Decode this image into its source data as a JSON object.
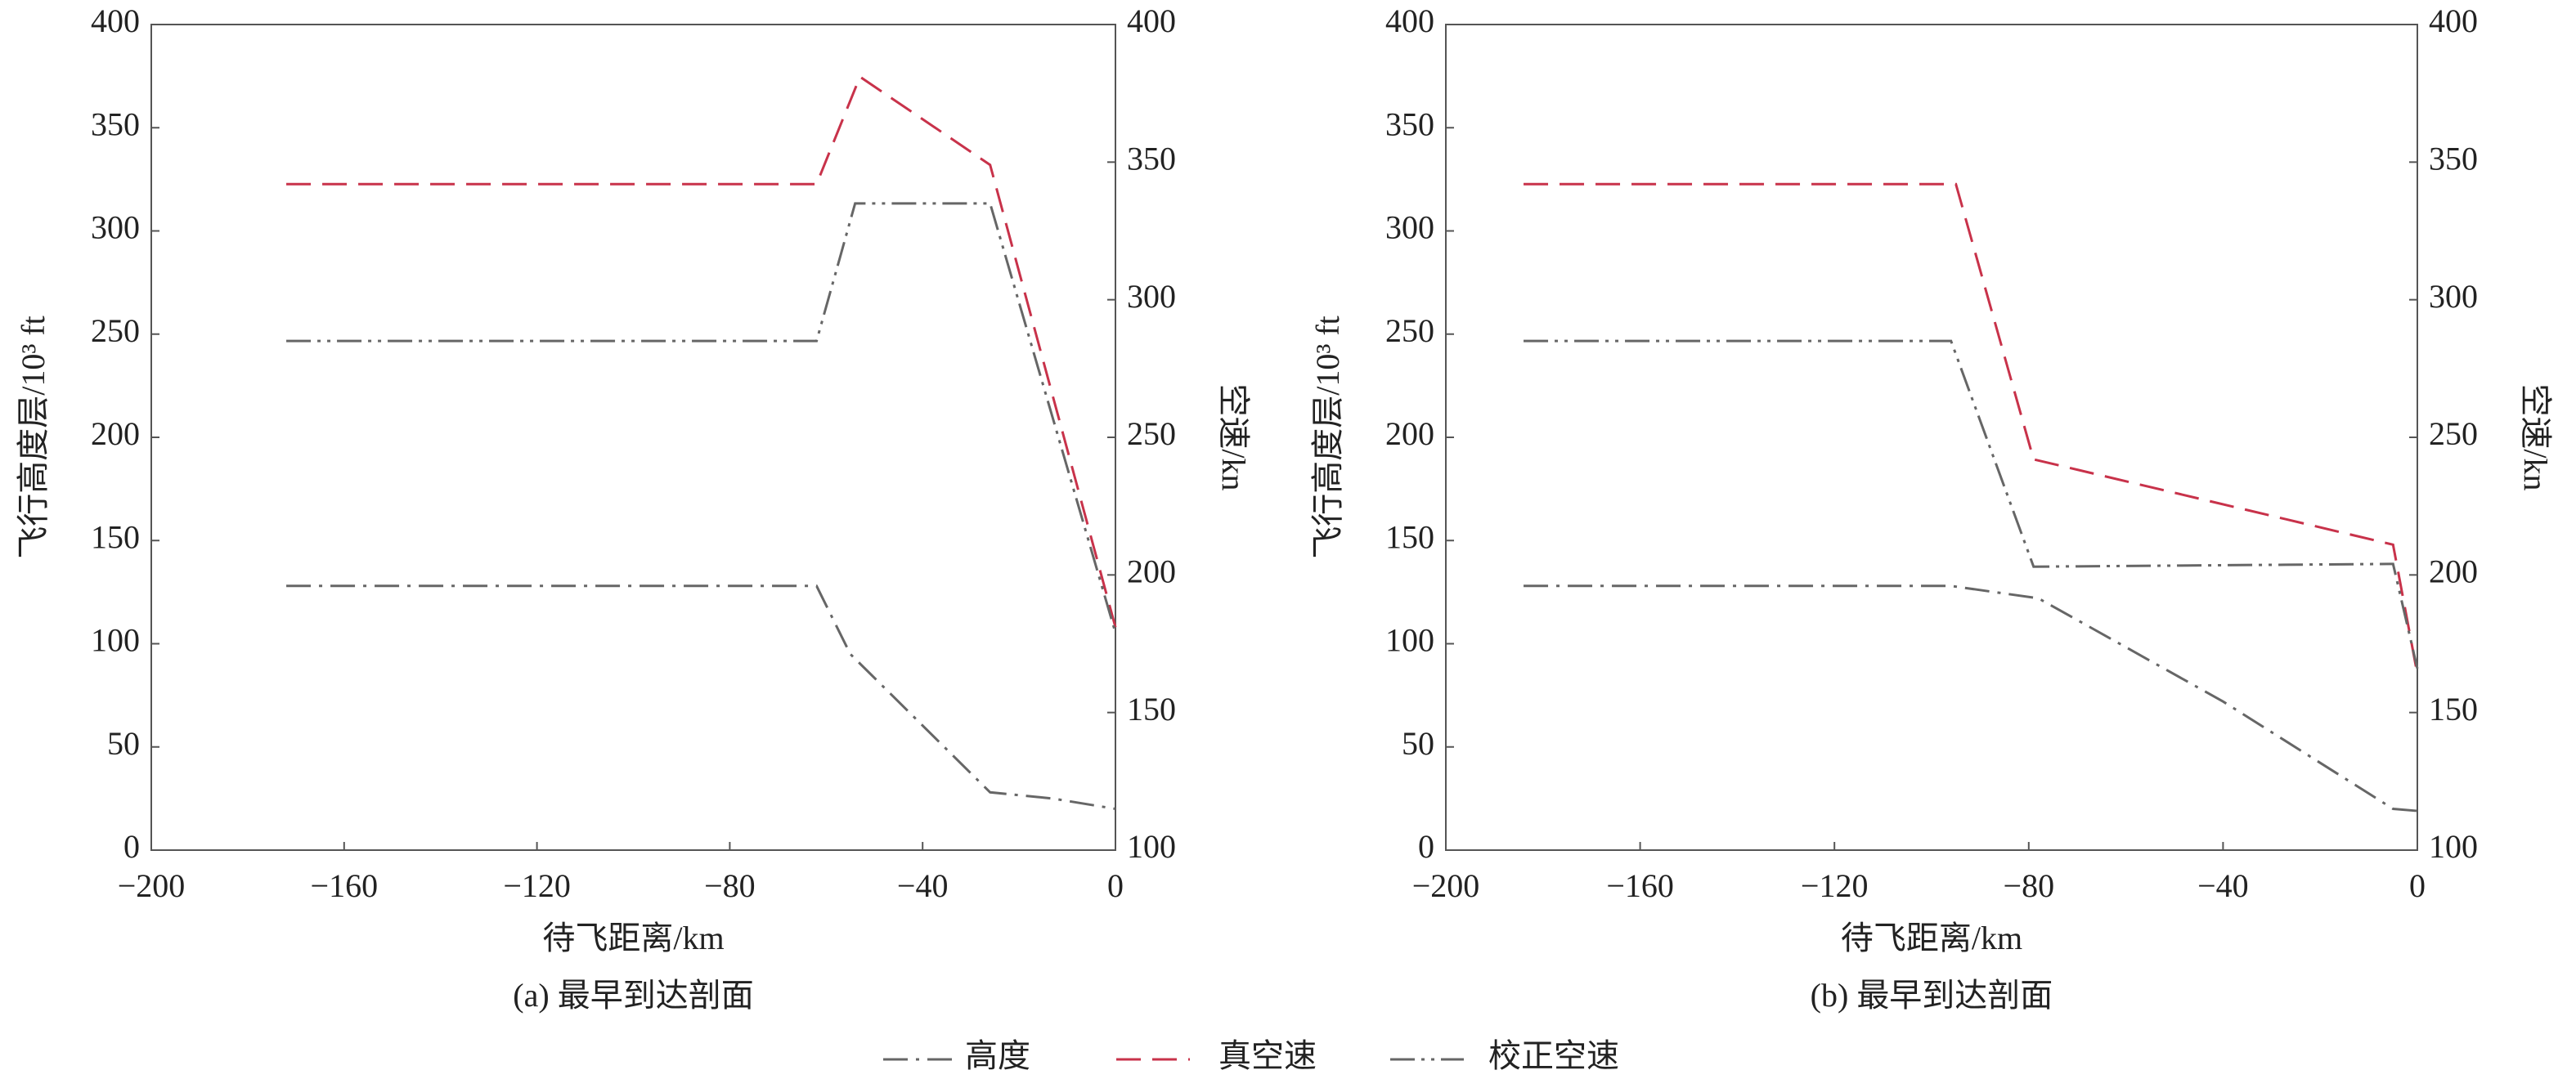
{
  "chart_data": [
    {
      "type": "line",
      "title": "(a) 最早到达剖面",
      "x_label": "待飞距离/km",
      "y_label": "飞行高度层/10³ ft",
      "y2_label": "空速/kn",
      "xlim": [
        -200,
        0
      ],
      "xticks": [
        {
          "value": -200,
          "label": "−200"
        },
        {
          "value": -160,
          "label": "−160"
        },
        {
          "value": -120,
          "label": "−120"
        },
        {
          "value": -80,
          "label": "−80"
        },
        {
          "value": -40,
          "label": "−40"
        },
        0
      ],
      "ylim": [
        0,
        400
      ],
      "yticks": [
        0,
        50,
        100,
        150,
        200,
        250,
        300,
        350,
        400
      ],
      "y2lim": [
        100,
        400
      ],
      "y2ticks": [
        100,
        150,
        200,
        250,
        300,
        350,
        400
      ],
      "series": [
        {
          "name": "高度",
          "color": "#666666",
          "dash": "30 10 4 10",
          "x": [
            -172,
            -62,
            -55,
            -26,
            -13,
            0
          ],
          "values": [
            128,
            128,
            95,
            28,
            25,
            20
          ]
        },
        {
          "name": "真空速",
          "color": "#c8324a",
          "dash": "30 14",
          "axis": "y2",
          "x": [
            -172,
            -62,
            -53,
            -26,
            0
          ],
          "values": [
            342,
            342,
            381,
            349,
            181
          ]
        },
        {
          "name": "校正空速",
          "color": "#666666",
          "dash": "30 8 4 8 4 8",
          "axis": "y2",
          "x": [
            -172,
            -62,
            -54,
            -26,
            0
          ],
          "values": [
            285,
            285,
            335,
            335,
            179
          ]
        }
      ]
    },
    {
      "type": "line",
      "title": "(b) 最早到达剖面",
      "x_label": "待飞距离/km",
      "y_label": "飞行高度层/10³ ft",
      "y2_label": "空速/kn",
      "xlim": [
        -200,
        0
      ],
      "xticks": [
        {
          "value": -200,
          "label": "−200"
        },
        {
          "value": -160,
          "label": "−160"
        },
        {
          "value": -120,
          "label": "−120"
        },
        {
          "value": -80,
          "label": "−80"
        },
        {
          "value": -40,
          "label": "−40"
        },
        0
      ],
      "ylim": [
        0,
        400
      ],
      "yticks": [
        0,
        50,
        100,
        150,
        200,
        250,
        300,
        350,
        400
      ],
      "y2lim": [
        100,
        400
      ],
      "y2ticks": [
        100,
        150,
        200,
        250,
        300,
        350,
        400
      ],
      "series": [
        {
          "name": "高度",
          "color": "#666666",
          "dash": "30 10 4 10",
          "x": [
            -184,
            -96,
            -78,
            -40,
            -5,
            0
          ],
          "values": [
            128,
            128,
            122,
            72,
            20,
            19
          ]
        },
        {
          "name": "真空速",
          "color": "#c8324a",
          "dash": "30 14",
          "axis": "y2",
          "x": [
            -184,
            -95,
            -79,
            -5,
            0
          ],
          "values": [
            342,
            342,
            242,
            211,
            164
          ]
        },
        {
          "name": "校正空速",
          "color": "#666666",
          "dash": "30 8 4 8 4 8",
          "axis": "y2",
          "x": [
            -184,
            -96,
            -79,
            -5,
            0
          ],
          "values": [
            285,
            285,
            203,
            204,
            166
          ]
        }
      ]
    }
  ]
}
